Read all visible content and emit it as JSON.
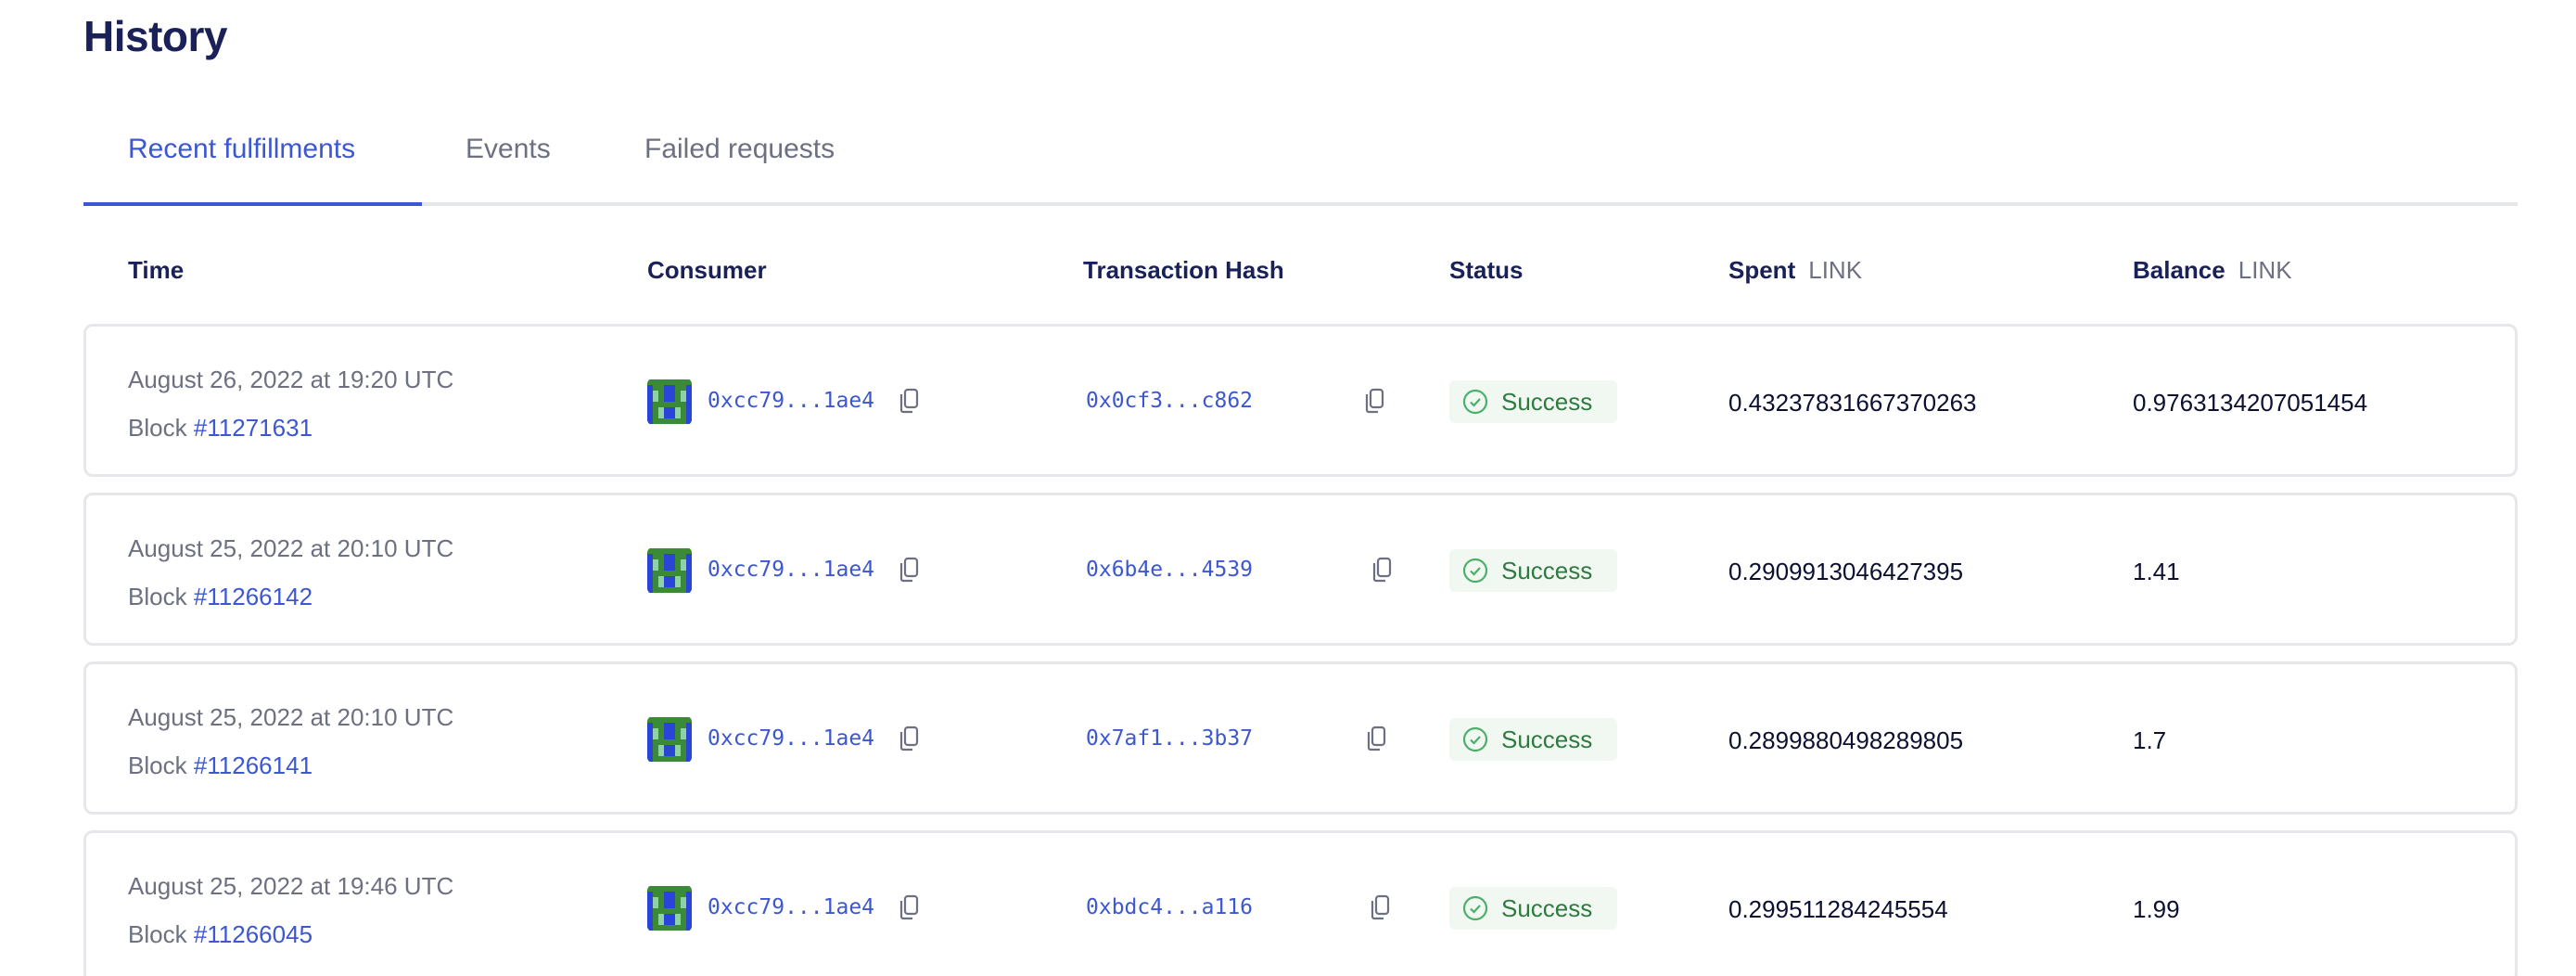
{
  "page_title": "History",
  "tabs": [
    {
      "label": "Recent fulfillments",
      "active": true
    },
    {
      "label": "Events",
      "active": false
    },
    {
      "label": "Failed requests",
      "active": false
    }
  ],
  "columns": {
    "time": "Time",
    "consumer": "Consumer",
    "tx_hash": "Transaction Hash",
    "status": "Status",
    "spent": "Spent",
    "spent_unit": "LINK",
    "balance": "Balance",
    "balance_unit": "LINK"
  },
  "block_prefix": "Block ",
  "rows": [
    {
      "date": "August 26, 2022 at 19:20 UTC",
      "block": "#11271631",
      "consumer": "0xcc79...1ae4",
      "tx_hash": "0x0cf3...c862",
      "status": "Success",
      "spent": "0.43237831667370263",
      "balance": "0.9763134207051454"
    },
    {
      "date": "August 25, 2022 at 20:10 UTC",
      "block": "#11266142",
      "consumer": "0xcc79...1ae4",
      "tx_hash": "0x6b4e...4539",
      "status": "Success",
      "spent": "0.2909913046427395",
      "balance": "1.41"
    },
    {
      "date": "August 25, 2022 at 20:10 UTC",
      "block": "#11266141",
      "consumer": "0xcc79...1ae4",
      "tx_hash": "0x7af1...3b37",
      "status": "Success",
      "spent": "0.2899880498289805",
      "balance": "1.7"
    },
    {
      "date": "August 25, 2022 at 19:46 UTC",
      "block": "#11266045",
      "consumer": "0xcc79...1ae4",
      "tx_hash": "0xbdc4...a116",
      "status": "Success",
      "spent": "0.299511284245554",
      "balance": "1.99"
    }
  ],
  "icons": {
    "copy": "copy-icon",
    "status": "check-circle-icon",
    "avatar": "identicon-avatar"
  },
  "colors": {
    "accent": "#3d57d0",
    "heading": "#1a2158",
    "success": "#2f7a40",
    "success_bg": "#f1f8f2"
  }
}
